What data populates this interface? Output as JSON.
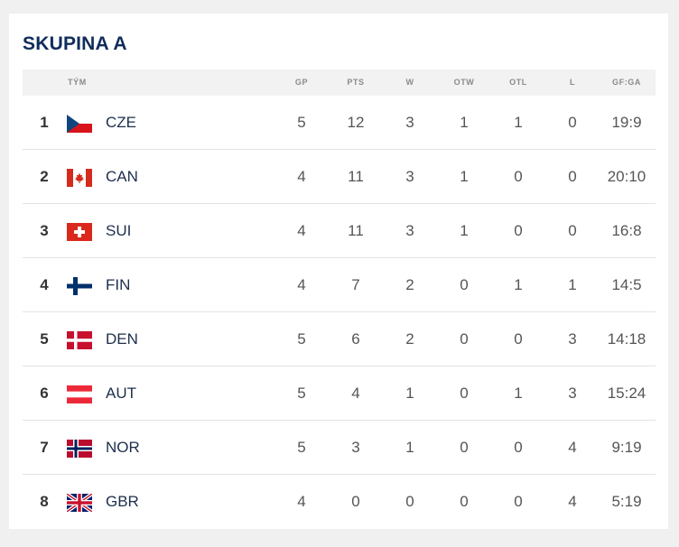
{
  "title": "SKUPINA A",
  "columns": {
    "team": "TÝM",
    "gp": "GP",
    "pts": "PTS",
    "w": "W",
    "otw": "OTW",
    "otl": "OTL",
    "l": "L",
    "gfga": "GF:GA"
  },
  "colors": {
    "title": "#0f2d5a",
    "header_bg": "#f2f2f2",
    "row_border": "#e3e3e3"
  },
  "rows": [
    {
      "rank": "1",
      "flag": "cze-flag-icon",
      "team": "CZE",
      "gp": "5",
      "pts": "12",
      "w": "3",
      "otw": "1",
      "otl": "1",
      "l": "0",
      "gfga": "19:9"
    },
    {
      "rank": "2",
      "flag": "can-flag-icon",
      "team": "CAN",
      "gp": "4",
      "pts": "11",
      "w": "3",
      "otw": "1",
      "otl": "0",
      "l": "0",
      "gfga": "20:10"
    },
    {
      "rank": "3",
      "flag": "sui-flag-icon",
      "team": "SUI",
      "gp": "4",
      "pts": "11",
      "w": "3",
      "otw": "1",
      "otl": "0",
      "l": "0",
      "gfga": "16:8"
    },
    {
      "rank": "4",
      "flag": "fin-flag-icon",
      "team": "FIN",
      "gp": "4",
      "pts": "7",
      "w": "2",
      "otw": "0",
      "otl": "1",
      "l": "1",
      "gfga": "14:5"
    },
    {
      "rank": "5",
      "flag": "den-flag-icon",
      "team": "DEN",
      "gp": "5",
      "pts": "6",
      "w": "2",
      "otw": "0",
      "otl": "0",
      "l": "3",
      "gfga": "14:18"
    },
    {
      "rank": "6",
      "flag": "aut-flag-icon",
      "team": "AUT",
      "gp": "5",
      "pts": "4",
      "w": "1",
      "otw": "0",
      "otl": "1",
      "l": "3",
      "gfga": "15:24"
    },
    {
      "rank": "7",
      "flag": "nor-flag-icon",
      "team": "NOR",
      "gp": "5",
      "pts": "3",
      "w": "1",
      "otw": "0",
      "otl": "0",
      "l": "4",
      "gfga": "9:19"
    },
    {
      "rank": "8",
      "flag": "gbr-flag-icon",
      "team": "GBR",
      "gp": "4",
      "pts": "0",
      "w": "0",
      "otw": "0",
      "otl": "0",
      "l": "4",
      "gfga": "5:19"
    }
  ]
}
